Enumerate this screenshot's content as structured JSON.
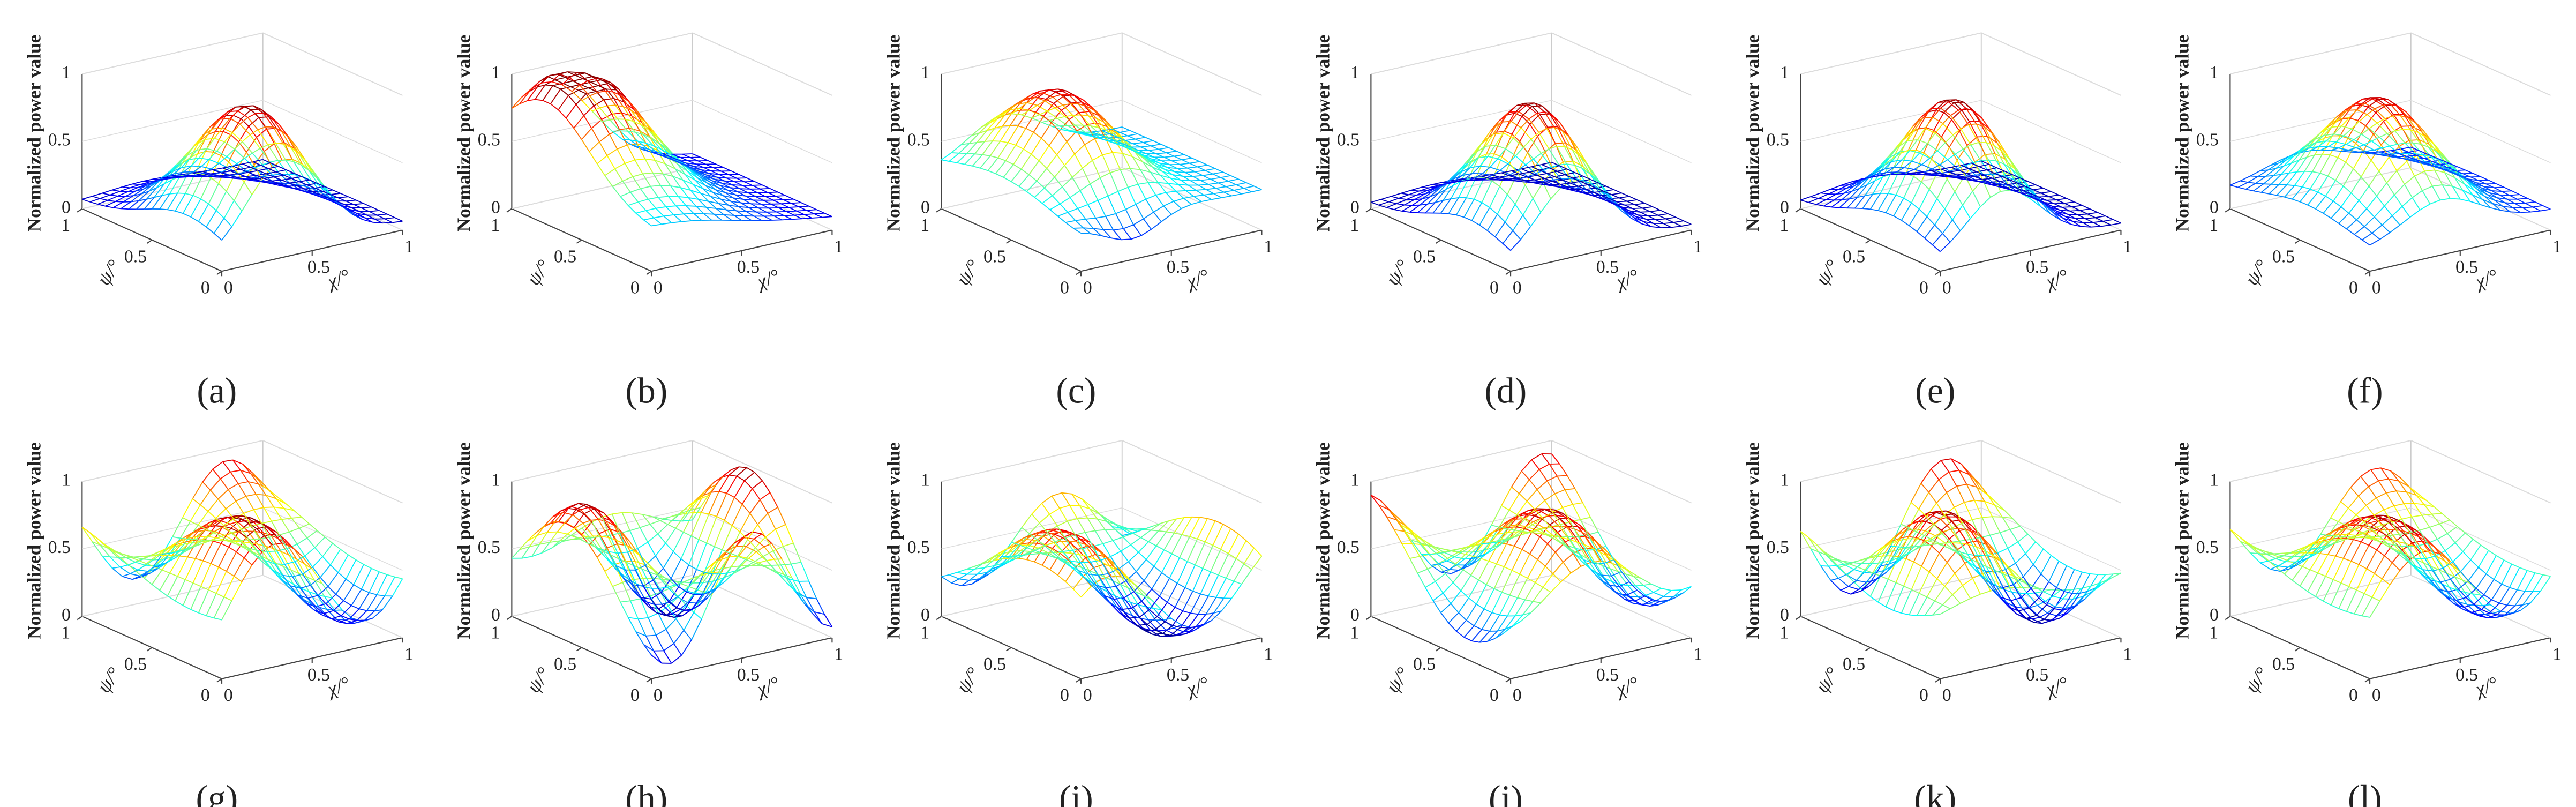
{
  "panels": [
    {
      "label": "(a)",
      "zlabel": "Normalized power value",
      "xlabel": "χ/°",
      "ylabel": "ψ/°",
      "zticks": [
        0,
        0.5,
        1
      ],
      "xticks": [
        0,
        0.5,
        1
      ],
      "yticks": [
        0,
        0.5,
        1
      ]
    },
    {
      "label": "(b)",
      "zlabel": "Normalized power value",
      "xlabel": "χ/°",
      "ylabel": "ψ/°",
      "zticks": [
        0,
        0.5,
        1
      ],
      "xticks": [
        0,
        0.5,
        1
      ],
      "yticks": [
        0,
        0.5,
        1
      ]
    },
    {
      "label": "(c)",
      "zlabel": "Normalized power value",
      "xlabel": "χ/°",
      "ylabel": "ψ/°",
      "zticks": [
        0,
        0.5,
        1
      ],
      "xticks": [
        0,
        0.5,
        1
      ],
      "yticks": [
        0,
        0.5,
        1
      ]
    },
    {
      "label": "(d)",
      "zlabel": "Normalized power value",
      "xlabel": "χ/°",
      "ylabel": "ψ/°",
      "zticks": [
        0,
        0.5,
        1
      ],
      "xticks": [
        0,
        0.5,
        1
      ],
      "yticks": [
        0,
        0.5,
        1
      ]
    },
    {
      "label": "(e)",
      "zlabel": "Normalized power value",
      "xlabel": "χ/°",
      "ylabel": "ψ/°",
      "zticks": [
        0,
        0.5,
        1
      ],
      "xticks": [
        0,
        0.5,
        1
      ],
      "yticks": [
        0,
        0.5,
        1
      ]
    },
    {
      "label": "(f)",
      "zlabel": "Normalized power value",
      "xlabel": "χ/°",
      "ylabel": "ψ/°",
      "zticks": [
        0,
        0.5,
        1
      ],
      "xticks": [
        0,
        0.5,
        1
      ],
      "yticks": [
        0,
        0.5,
        1
      ]
    },
    {
      "label": "(g)",
      "zlabel": "Normalized power value",
      "xlabel": "χ/°",
      "ylabel": "ψ/°",
      "zticks": [
        0,
        0.5,
        1
      ],
      "xticks": [
        0,
        0.5,
        1
      ],
      "yticks": [
        0,
        0.5,
        1
      ]
    },
    {
      "label": "(h)",
      "zlabel": "Normalized power value",
      "xlabel": "χ/°",
      "ylabel": "ψ/°",
      "zticks": [
        0,
        0.5,
        1
      ],
      "xticks": [
        0,
        0.5,
        1
      ],
      "yticks": [
        0,
        0.5,
        1
      ]
    },
    {
      "label": "(i)",
      "zlabel": "Normalized power value",
      "xlabel": "χ/°",
      "ylabel": "ψ/°",
      "zticks": [
        0,
        0.5,
        1
      ],
      "xticks": [
        0,
        0.5,
        1
      ],
      "yticks": [
        0,
        0.5,
        1
      ]
    },
    {
      "label": "(j)",
      "zlabel": "Normalized power value",
      "xlabel": "χ/°",
      "ylabel": "ψ/°",
      "zticks": [
        0,
        0.5,
        1
      ],
      "xticks": [
        0,
        0.5,
        1
      ],
      "yticks": [
        0,
        0.5,
        1
      ]
    },
    {
      "label": "(k)",
      "zlabel": "Normalized power value",
      "xlabel": "χ/°",
      "ylabel": "ψ/°",
      "zticks": [
        0,
        0.5,
        1
      ],
      "xticks": [
        0,
        0.5,
        1
      ],
      "yticks": [
        0,
        0.5,
        1
      ]
    },
    {
      "label": "(l)",
      "zlabel": "Normalized power value",
      "xlabel": "χ/°",
      "ylabel": "ψ/°",
      "zticks": [
        0,
        0.5,
        1
      ],
      "xticks": [
        0,
        0.5,
        1
      ],
      "yticks": [
        0,
        0.5,
        1
      ]
    }
  ]
}
